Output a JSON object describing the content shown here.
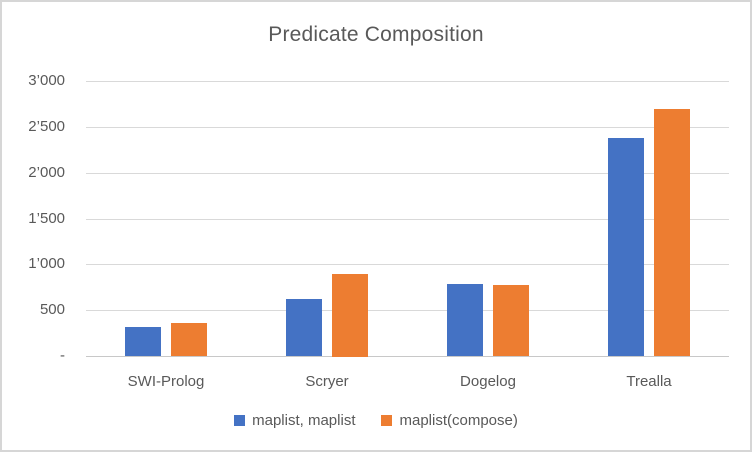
{
  "title": "Predicate Composition",
  "colors": {
    "series1": "#4472C4",
    "series2": "#ED7D31",
    "grid": "#d9d9d9",
    "axis": "#c8c8c8",
    "text": "#595959",
    "background": "#ffffff",
    "border": "#d6d6d6"
  },
  "chart_data": {
    "type": "bar",
    "title": "Predicate Composition",
    "categories": [
      "SWI-Prolog",
      "Scryer",
      "Dogelog",
      "Trealla"
    ],
    "series": [
      {
        "name": "maplist, maplist",
        "color": "#4472C4",
        "values": [
          315,
          620,
          785,
          2380
        ]
      },
      {
        "name": "maplist(compose)",
        "color": "#ED7D31",
        "values": [
          360,
          900,
          775,
          2690
        ]
      }
    ],
    "xlabel": "",
    "ylabel": "",
    "ylim": [
      0,
      3000
    ],
    "ytick_step": 500,
    "ytick_labels": [
      "-",
      "500",
      "1’000",
      "1’500",
      "2’000",
      "2’500",
      "3’000"
    ],
    "grid": true,
    "legend_position": "bottom"
  }
}
